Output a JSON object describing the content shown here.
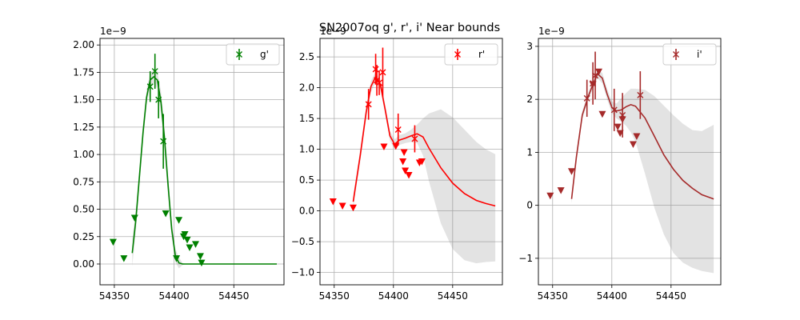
{
  "chart_data": {
    "title": "SN2007oq  g', r', i' Near bounds",
    "panels": [
      {
        "type": "line",
        "legend": "g'",
        "legend_position": "top-right",
        "color": "#008000",
        "offset_text": "1e−9",
        "xlim": [
          54338,
          54492
        ],
        "ylim": [
          -0.19,
          2.06
        ],
        "xticks": [
          54350,
          54400,
          54450
        ],
        "xtick_labels": [
          "54350",
          "54400",
          "54450"
        ],
        "yticks": [
          0,
          0.25,
          0.5,
          0.75,
          1.0,
          1.25,
          1.5,
          1.75,
          2.0
        ],
        "ytick_labels": [
          "0.00",
          "0.25",
          "0.50",
          "0.75",
          "1.00",
          "1.25",
          "1.50",
          "1.75",
          "2.00"
        ],
        "grid": true,
        "detections": [
          {
            "x": 54380,
            "y": 1.62,
            "err": 0.14
          },
          {
            "x": 54384,
            "y": 1.76,
            "err": 0.16
          },
          {
            "x": 54387,
            "y": 1.5,
            "err": 0.17
          },
          {
            "x": 54391,
            "y": 1.12,
            "err": 0.25
          }
        ],
        "upper_limits": [
          {
            "x": 54349,
            "y": 0.2
          },
          {
            "x": 54358,
            "y": 0.05
          },
          {
            "x": 54367,
            "y": 0.42
          },
          {
            "x": 54393,
            "y": 0.46
          },
          {
            "x": 54402,
            "y": 0.05
          },
          {
            "x": 54404,
            "y": 0.4
          },
          {
            "x": 54408,
            "y": 0.25
          },
          {
            "x": 54409,
            "y": 0.27
          },
          {
            "x": 54411,
            "y": 0.22
          },
          {
            "x": 54413,
            "y": 0.15
          },
          {
            "x": 54418,
            "y": 0.18
          },
          {
            "x": 54422,
            "y": 0.07
          },
          {
            "x": 54423,
            "y": 0.01
          }
        ],
        "model_x": [
          54365,
          54368,
          54371,
          54374,
          54377,
          54380,
          54383,
          54386,
          54389,
          54392,
          54395,
          54398,
          54401,
          54404,
          54407,
          54410,
          54420,
          54440,
          54460,
          54486
        ],
        "model_y": [
          0.1,
          0.4,
          0.8,
          1.2,
          1.52,
          1.68,
          1.71,
          1.68,
          1.48,
          1.15,
          0.72,
          0.32,
          0.08,
          0.01,
          0.0,
          0.0,
          0.0,
          0.0,
          0.0,
          0.0
        ],
        "band_low": [
          -0.02,
          0.3,
          0.72,
          1.12,
          1.45,
          1.62,
          1.65,
          1.6,
          1.38,
          1.04,
          0.62,
          0.24,
          0.02,
          -0.04,
          -0.01,
          0.0,
          0.0,
          0.0,
          0.0,
          0.0
        ],
        "band_high": [
          0.22,
          0.5,
          0.88,
          1.28,
          1.59,
          1.74,
          1.77,
          1.76,
          1.58,
          1.26,
          0.82,
          0.4,
          0.14,
          0.06,
          0.01,
          0.0,
          0.0,
          0.0,
          0.0,
          0.0
        ]
      },
      {
        "type": "line",
        "legend": "r'",
        "legend_position": "top-right",
        "color": "#ff0000",
        "offset_text": "1e−9",
        "xlim": [
          54338,
          54492
        ],
        "ylim": [
          -1.2,
          2.8
        ],
        "xticks": [
          54350,
          54400,
          54450
        ],
        "xtick_labels": [
          "54350",
          "54400",
          "54450"
        ],
        "yticks": [
          -1.0,
          -0.5,
          0.0,
          0.5,
          1.0,
          1.5,
          2.0,
          2.5
        ],
        "ytick_labels": [
          "−1.0",
          "−0.5",
          "0.0",
          "0.5",
          "1.0",
          "1.5",
          "2.0",
          "2.5"
        ],
        "grid": true,
        "detections": [
          {
            "x": 54379,
            "y": 1.73,
            "err": 0.25
          },
          {
            "x": 54385,
            "y": 2.3,
            "err": 0.25
          },
          {
            "x": 54386,
            "y": 2.12,
            "err": 0.25
          },
          {
            "x": 54388,
            "y": 2.08,
            "err": 0.2
          },
          {
            "x": 54391,
            "y": 2.25,
            "err": 0.4
          },
          {
            "x": 54404,
            "y": 1.32,
            "err": 0.26
          },
          {
            "x": 54418,
            "y": 1.17,
            "err": 0.22
          }
        ],
        "upper_limits": [
          {
            "x": 54349,
            "y": 0.15
          },
          {
            "x": 54357,
            "y": 0.08
          },
          {
            "x": 54366,
            "y": 0.05
          },
          {
            "x": 54392,
            "y": 1.04
          },
          {
            "x": 54402,
            "y": 1.05
          },
          {
            "x": 54408,
            "y": 0.8
          },
          {
            "x": 54409,
            "y": 0.95
          },
          {
            "x": 54410,
            "y": 0.65
          },
          {
            "x": 54413,
            "y": 0.58
          },
          {
            "x": 54422,
            "y": 0.78
          },
          {
            "x": 54424,
            "y": 0.8
          }
        ],
        "model_x": [
          54366,
          54372,
          54377,
          54381,
          54385,
          54389,
          54393,
          54397,
          54401,
          54405,
          54410,
          54415,
          54420,
          54425,
          54430,
          54440,
          54450,
          54460,
          54470,
          54478,
          54486
        ],
        "model_y": [
          0.15,
          0.9,
          1.6,
          2.02,
          2.18,
          2.05,
          1.65,
          1.22,
          1.08,
          1.15,
          1.18,
          1.22,
          1.25,
          1.2,
          1.02,
          0.7,
          0.45,
          0.28,
          0.17,
          0.12,
          0.08
        ],
        "band_low": [
          0.05,
          0.8,
          1.5,
          1.93,
          2.1,
          1.97,
          1.57,
          1.14,
          1.0,
          1.07,
          1.1,
          1.12,
          1.1,
          0.9,
          0.48,
          -0.2,
          -0.62,
          -0.8,
          -0.85,
          -0.83,
          -0.82
        ],
        "band_high": [
          0.25,
          1.0,
          1.7,
          2.11,
          2.26,
          2.13,
          1.73,
          1.3,
          1.16,
          1.23,
          1.26,
          1.32,
          1.4,
          1.5,
          1.58,
          1.65,
          1.52,
          1.32,
          1.12,
          1.0,
          0.92
        ]
      },
      {
        "type": "line",
        "legend": "i'",
        "legend_position": "top-right",
        "color": "#a52a2a",
        "offset_text": "1e−9",
        "xlim": [
          54338,
          54492
        ],
        "ylim": [
          -1.5,
          3.15
        ],
        "xticks": [
          54350,
          54400,
          54450
        ],
        "xtick_labels": [
          "54350",
          "54400",
          "54450"
        ],
        "yticks": [
          -1,
          0,
          1,
          2,
          3
        ],
        "ytick_labels": [
          "−1",
          "0",
          "1",
          "2",
          "3"
        ],
        "grid": true,
        "detections": [
          {
            "x": 54379,
            "y": 2.02,
            "err": 0.35
          },
          {
            "x": 54384,
            "y": 2.3,
            "err": 0.4
          },
          {
            "x": 54386,
            "y": 2.45,
            "err": 0.45
          },
          {
            "x": 54402,
            "y": 1.8,
            "err": 0.4
          },
          {
            "x": 54409,
            "y": 1.7,
            "err": 0.42
          },
          {
            "x": 54424,
            "y": 2.08,
            "err": 0.45
          }
        ],
        "upper_limits": [
          {
            "x": 54348,
            "y": 0.18
          },
          {
            "x": 54357,
            "y": 0.28
          },
          {
            "x": 54366,
            "y": 0.64
          },
          {
            "x": 54384,
            "y": 2.28
          },
          {
            "x": 54389,
            "y": 2.52
          },
          {
            "x": 54392,
            "y": 1.72
          },
          {
            "x": 54405,
            "y": 1.48
          },
          {
            "x": 54407,
            "y": 1.36
          },
          {
            "x": 54409,
            "y": 1.62
          },
          {
            "x": 54418,
            "y": 1.15
          },
          {
            "x": 54421,
            "y": 1.3
          }
        ],
        "model_x": [
          54366,
          54370,
          54375,
          54380,
          54384,
          54388,
          54392,
          54396,
          54400,
          54404,
          54408,
          54412,
          54416,
          54420,
          54428,
          54436,
          54444,
          54452,
          54460,
          54468,
          54476,
          54486
        ],
        "model_y": [
          0.12,
          0.9,
          1.7,
          2.05,
          2.28,
          2.48,
          2.4,
          2.1,
          1.85,
          1.78,
          1.8,
          1.86,
          1.9,
          1.87,
          1.65,
          1.3,
          0.95,
          0.68,
          0.47,
          0.32,
          0.2,
          0.12
        ],
        "band_low": [
          0.04,
          0.82,
          1.62,
          1.98,
          2.2,
          2.4,
          2.3,
          2.0,
          1.74,
          1.64,
          1.58,
          1.5,
          1.38,
          1.2,
          0.6,
          -0.05,
          -0.55,
          -0.9,
          -1.08,
          -1.18,
          -1.24,
          -1.28
        ],
        "band_high": [
          0.2,
          0.98,
          1.78,
          2.12,
          2.36,
          2.56,
          2.5,
          2.2,
          1.96,
          1.92,
          2.02,
          2.12,
          2.2,
          2.2,
          2.18,
          2.06,
          1.88,
          1.7,
          1.54,
          1.42,
          1.4,
          1.52
        ]
      }
    ]
  }
}
